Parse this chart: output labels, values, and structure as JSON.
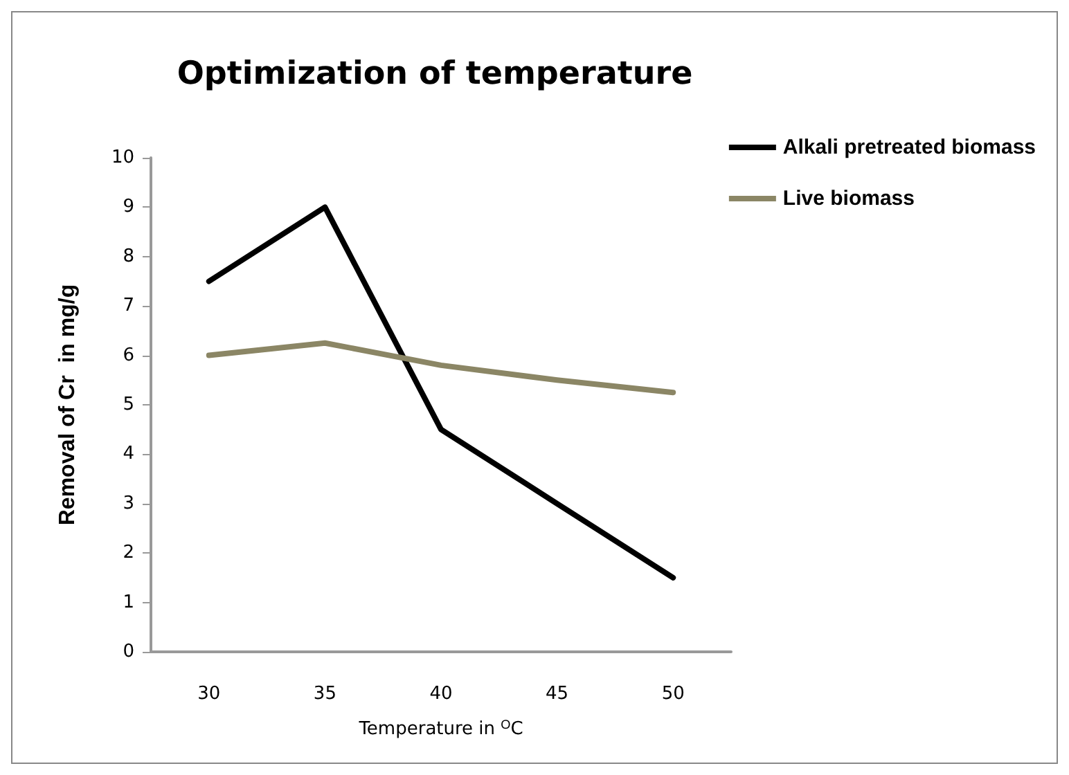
{
  "chart_data": {
    "type": "line",
    "title": "Optimization of temperature",
    "xlabel": "Temperature in $^{O}$C",
    "ylabel": "Removal of Cr  in mg/g",
    "categories": [
      "30",
      "35",
      "40",
      "45",
      "50"
    ],
    "series": [
      {
        "name": "Alkali pretreated biomass",
        "color": "#000000",
        "values": [
          7.5,
          9,
          4.5,
          3,
          1.5
        ]
      },
      {
        "name": "Live biomass",
        "color": "#8b8665",
        "values": [
          6,
          6.25,
          5.8,
          5.5,
          5.25
        ]
      }
    ],
    "ylim": [
      0,
      10
    ],
    "yticks": [
      0,
      1,
      2,
      3,
      4,
      5,
      6,
      7,
      8,
      9,
      10
    ],
    "grid": false,
    "legend": "top right",
    "marker": "none",
    "line_style": "solid"
  }
}
